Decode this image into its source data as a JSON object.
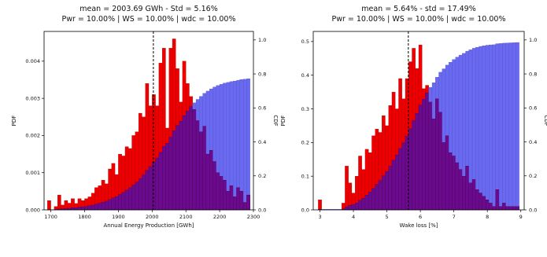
{
  "chart_data": [
    {
      "type": "bar",
      "title": "mean = 2003.69 GWh - Std = 5.16%",
      "subtitle": "Pwr = 10.00% | WS = 10.00% | wdc = 10.00%",
      "xlabel": "Annual Energy Production [GWh]",
      "ylabel": "PDF",
      "y2label": "CDF",
      "xlim": [
        1680,
        2300
      ],
      "ylim": [
        0,
        0.0048
      ],
      "y2lim": [
        0,
        1.05
      ],
      "xticks": [
        1700,
        1800,
        1900,
        2000,
        2100,
        2200,
        2300
      ],
      "yticks": [
        0.0,
        0.001,
        0.002,
        0.003,
        0.004
      ],
      "ytick_labels": [
        "0.000",
        "0.001",
        "0.002",
        "0.003",
        "0.004"
      ],
      "y2ticks": [
        0.0,
        0.2,
        0.4,
        0.6,
        0.8,
        1.0
      ],
      "y2tick_labels": [
        "0.0",
        "0.2",
        "0.4",
        "0.6",
        "0.8",
        "1.0"
      ],
      "mean_line": 2003.69,
      "grid": false,
      "colors": {
        "pdf": "#ee0000",
        "cdf": "#6a6af0",
        "overlap": "#6a0a8e"
      },
      "bin_width": 10,
      "bin_start": 1690,
      "pdf": [
        0.00025,
        0.0,
        9e-05,
        0.0004,
        0.00013,
        0.00025,
        0.00018,
        0.0003,
        0.00017,
        0.0003,
        0.00025,
        0.0003,
        0.00035,
        0.00045,
        0.0006,
        0.00065,
        0.0008,
        0.0007,
        0.0011,
        0.00125,
        0.00095,
        0.0015,
        0.00145,
        0.0017,
        0.00165,
        0.002,
        0.0021,
        0.0026,
        0.0025,
        0.0034,
        0.0028,
        0.0031,
        0.0028,
        0.00395,
        0.00435,
        0.0022,
        0.00435,
        0.0046,
        0.0038,
        0.0029,
        0.004,
        0.0034,
        0.00305,
        0.0027,
        0.0024,
        0.0021,
        0.00225,
        0.0015,
        0.0016,
        0.0013,
        0.001,
        0.0009,
        0.0008,
        0.0005,
        0.00065,
        0.00035,
        0.0006,
        0.0005,
        0.0002,
        0.0004
      ],
      "cdf": [
        0.001,
        0.001,
        0.002,
        0.005,
        0.006,
        0.008,
        0.009,
        0.012,
        0.013,
        0.016,
        0.018,
        0.02,
        0.024,
        0.028,
        0.033,
        0.039,
        0.045,
        0.051,
        0.06,
        0.07,
        0.078,
        0.09,
        0.102,
        0.116,
        0.13,
        0.146,
        0.163,
        0.184,
        0.205,
        0.232,
        0.256,
        0.282,
        0.305,
        0.338,
        0.374,
        0.392,
        0.428,
        0.466,
        0.497,
        0.521,
        0.554,
        0.582,
        0.608,
        0.63,
        0.65,
        0.668,
        0.686,
        0.699,
        0.712,
        0.723,
        0.732,
        0.739,
        0.746,
        0.75,
        0.755,
        0.758,
        0.763,
        0.767,
        0.769,
        0.772
      ]
    },
    {
      "type": "bar",
      "title": "mean = 5.64% - std = 17.49%",
      "subtitle": "Pwr = 10.00% | WS = 10.00% | wdc = 10.00%",
      "xlabel": "Wake loss [%]",
      "ylabel": "PDF",
      "y2label": "CDF",
      "xlim": [
        2.8,
        9.1
      ],
      "ylim": [
        0,
        0.53
      ],
      "y2lim": [
        0,
        1.05
      ],
      "xticks": [
        3,
        4,
        5,
        6,
        7,
        8,
        9
      ],
      "yticks": [
        0.0,
        0.1,
        0.2,
        0.3,
        0.4,
        0.5
      ],
      "ytick_labels": [
        "0.0",
        "0.1",
        "0.2",
        "0.3",
        "0.4",
        "0.5"
      ],
      "y2ticks": [
        0.0,
        0.2,
        0.4,
        0.6,
        0.8,
        1.0
      ],
      "y2tick_labels": [
        "0.0",
        "0.2",
        "0.4",
        "0.6",
        "0.8",
        "1.0"
      ],
      "mean_line": 5.64,
      "grid": false,
      "colors": {
        "pdf": "#ee0000",
        "cdf": "#6a6af0",
        "overlap": "#6a0a8e"
      },
      "bin_width": 0.1,
      "bin_start": 2.95,
      "pdf": [
        0.03,
        0,
        0,
        0,
        0,
        0,
        0,
        0.02,
        0.13,
        0.08,
        0.05,
        0.1,
        0.16,
        0.12,
        0.18,
        0.17,
        0.22,
        0.24,
        0.23,
        0.28,
        0.25,
        0.31,
        0.35,
        0.3,
        0.39,
        0.33,
        0.39,
        0.44,
        0.48,
        0.42,
        0.49,
        0.36,
        0.37,
        0.32,
        0.27,
        0.33,
        0.29,
        0.2,
        0.22,
        0.17,
        0.16,
        0.14,
        0.12,
        0.1,
        0.13,
        0.08,
        0.09,
        0.06,
        0.05,
        0.04,
        0.03,
        0.02,
        0.01,
        0.06,
        0.01,
        0.02,
        0.01,
        0.01,
        0.01,
        0.01
      ],
      "cdf": [
        0.003,
        0.003,
        0.003,
        0.003,
        0.003,
        0.003,
        0.003,
        0.005,
        0.018,
        0.026,
        0.031,
        0.041,
        0.057,
        0.069,
        0.087,
        0.104,
        0.126,
        0.15,
        0.173,
        0.201,
        0.226,
        0.257,
        0.292,
        0.322,
        0.361,
        0.394,
        0.433,
        0.477,
        0.525,
        0.567,
        0.616,
        0.652,
        0.689,
        0.721,
        0.748,
        0.781,
        0.81,
        0.83,
        0.852,
        0.869,
        0.885,
        0.899,
        0.911,
        0.921,
        0.934,
        0.942,
        0.951,
        0.957,
        0.962,
        0.966,
        0.969,
        0.971,
        0.972,
        0.978,
        0.979,
        0.981,
        0.982,
        0.983,
        0.984,
        0.985
      ]
    }
  ]
}
